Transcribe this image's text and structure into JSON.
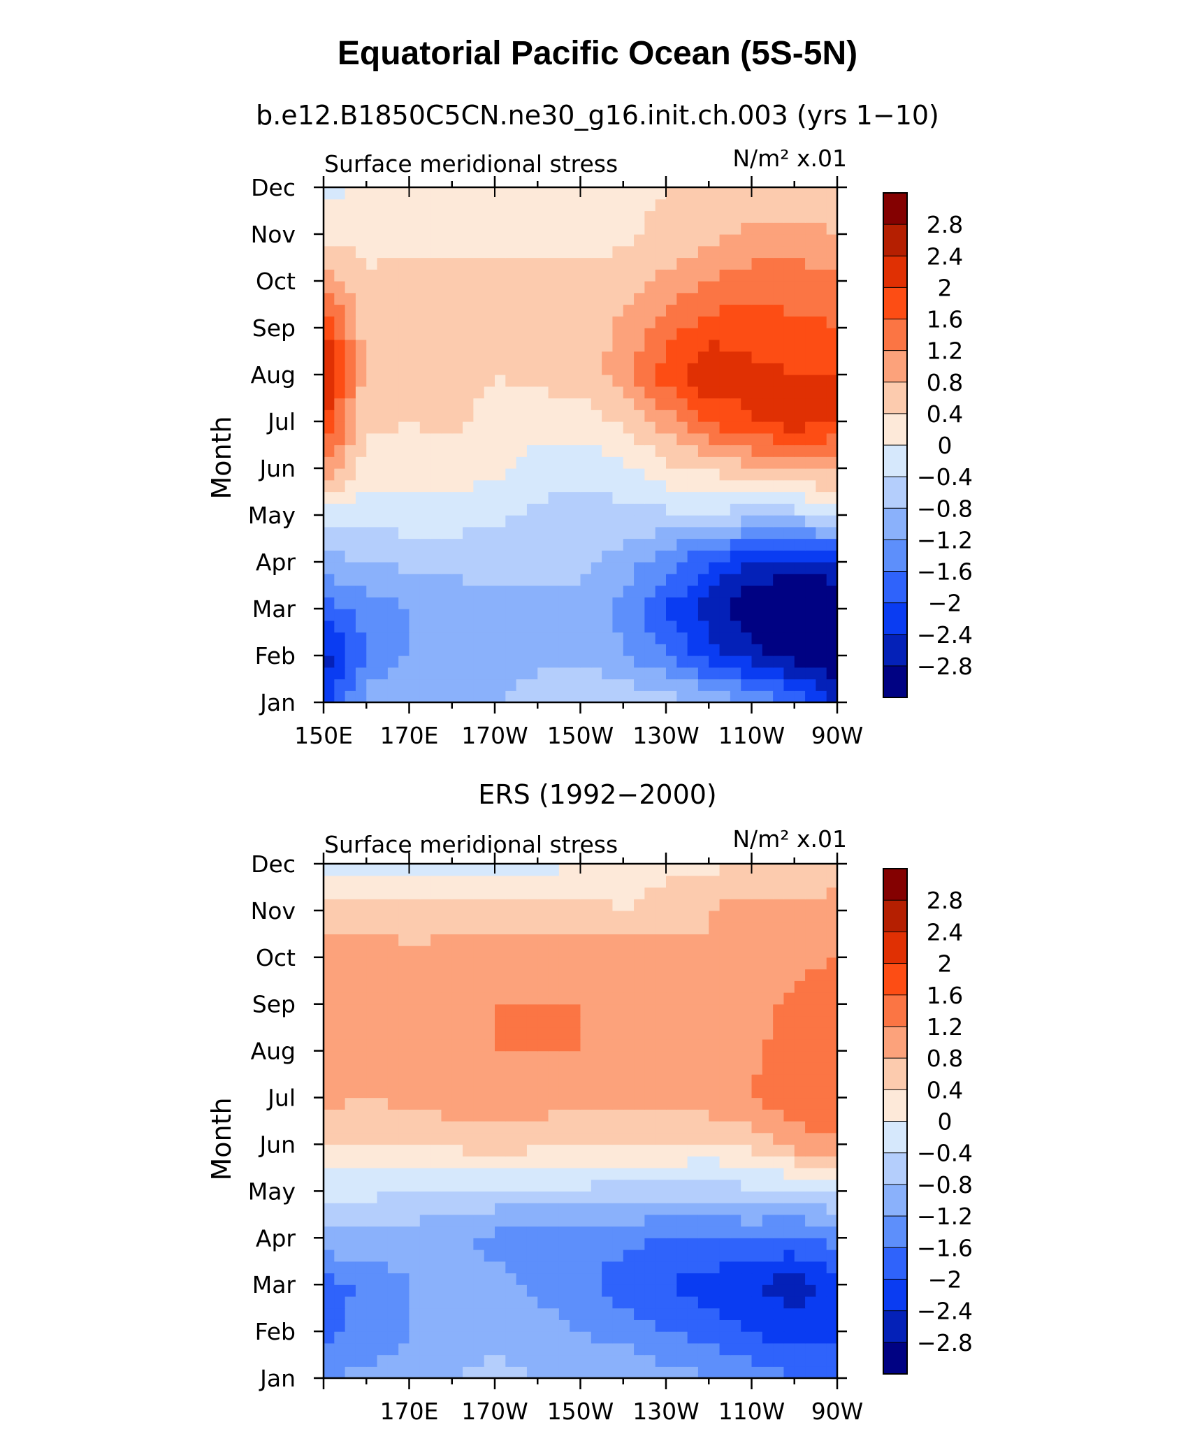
{
  "title": "Equatorial Pacific Ocean (5S-5N)",
  "colorbar_levels": [
    "2.8",
    "2.4",
    "2",
    "1.6",
    "1.2",
    "0.8",
    "0.4",
    "0",
    "−0.4",
    "−0.8",
    "−1.2",
    "−1.6",
    "−2",
    "−2.4",
    "−2.8"
  ],
  "colors": [
    "#840101",
    "#b51f01",
    "#e03003",
    "#fd4d14",
    "#fb7544",
    "#fca27b",
    "#fccbae",
    "#fde9d9",
    "#d6e8fc",
    "#b4cefc",
    "#8ab1fb",
    "#5d8ffb",
    "#2f63fb",
    "#0a3cf2",
    "#0421b8",
    "#000283"
  ],
  "chart_data": [
    {
      "type": "heatmap",
      "subtitle": "b.e12.B1850C5CN.ne30_g16.init.ch.003 (yrs 1−10)",
      "left_label": "Surface meridional stress",
      "units_label": "N/m² x.01",
      "ylabel": "Month",
      "months": [
        "Jan",
        "Feb",
        "Mar",
        "Apr",
        "May",
        "Jun",
        "Jul",
        "Aug",
        "Sep",
        "Oct",
        "Nov",
        "Dec"
      ],
      "xticks": [
        "150E",
        "170E",
        "170W",
        "150W",
        "130W",
        "110W",
        "90W"
      ],
      "x_longitudes": [
        150,
        160,
        170,
        180,
        190,
        200,
        210,
        220,
        230,
        240,
        250,
        260,
        270
      ],
      "values": [
        [
          -2.2,
          -1.0,
          -0.8,
          -0.8,
          -0.8,
          -0.6,
          -0.4,
          -0.4,
          -0.6,
          -0.8,
          -1.2,
          -1.6,
          -2.4
        ],
        [
          -2.6,
          -1.6,
          -1.2,
          -1.0,
          -1.0,
          -0.9,
          -0.9,
          -1.2,
          -1.6,
          -2.2,
          -2.6,
          -3.0,
          -3.2
        ],
        [
          -1.8,
          -1.4,
          -1.2,
          -1.0,
          -0.9,
          -0.9,
          -0.9,
          -1.3,
          -2.0,
          -2.6,
          -3.2,
          -3.4,
          -3.4
        ],
        [
          -1.0,
          -0.8,
          -0.7,
          -0.7,
          -0.7,
          -0.7,
          -0.7,
          -1.0,
          -1.4,
          -2.0,
          -2.4,
          -2.6,
          -2.4
        ],
        [
          -0.3,
          -0.2,
          -0.2,
          -0.2,
          -0.3,
          -0.5,
          -0.6,
          -0.5,
          -0.5,
          -0.5,
          -0.6,
          -0.6,
          -0.2
        ],
        [
          1.2,
          0.2,
          0.2,
          0.2,
          0.1,
          -0.2,
          -0.3,
          -0.1,
          0.3,
          0.5,
          0.7,
          0.8,
          0.9
        ],
        [
          2.0,
          0.5,
          0.4,
          0.5,
          0.2,
          0.2,
          0.2,
          0.5,
          1.0,
          1.6,
          2.0,
          2.2,
          2.0
        ],
        [
          2.6,
          0.6,
          0.6,
          0.6,
          0.4,
          0.5,
          0.6,
          1.0,
          1.8,
          2.4,
          2.1,
          2.0,
          2.0
        ],
        [
          2.0,
          0.6,
          0.6,
          0.6,
          0.6,
          0.5,
          0.5,
          0.9,
          1.4,
          1.8,
          1.8,
          1.7,
          1.6
        ],
        [
          1.0,
          0.5,
          0.5,
          0.5,
          0.5,
          0.5,
          0.5,
          0.6,
          0.9,
          1.2,
          1.4,
          1.4,
          1.4
        ],
        [
          0.3,
          0.2,
          0.3,
          0.3,
          0.3,
          0.3,
          0.3,
          0.3,
          0.5,
          0.7,
          0.9,
          0.9,
          0.8
        ],
        [
          -0.2,
          0.1,
          0.2,
          0.2,
          0.2,
          0.2,
          0.2,
          0.3,
          0.4,
          0.5,
          0.6,
          0.6,
          0.6
        ]
      ]
    },
    {
      "type": "heatmap",
      "subtitle": "ERS (1992−2000)",
      "left_label": "Surface meridional stress",
      "units_label": "N/m² x.01",
      "ylabel": "Month",
      "months": [
        "Jan",
        "Feb",
        "Mar",
        "Apr",
        "May",
        "Jun",
        "Jul",
        "Aug",
        "Sep",
        "Oct",
        "Nov",
        "Dec"
      ],
      "xticks": [
        "170E",
        "170W",
        "150W",
        "130W",
        "110W",
        "90W"
      ],
      "x_longitudes": [
        150,
        160,
        170,
        180,
        190,
        200,
        210,
        220,
        230,
        240,
        250,
        260,
        270
      ],
      "values": [
        [
          -1.2,
          -1.1,
          -1.0,
          -0.8,
          -0.7,
          -0.8,
          -0.8,
          -0.8,
          -1.0,
          -1.2,
          -1.4,
          -1.6,
          -1.6
        ],
        [
          -1.7,
          -1.5,
          -1.2,
          -1.0,
          -0.9,
          -1.0,
          -1.2,
          -1.4,
          -1.6,
          -1.8,
          -2.0,
          -2.2,
          -2.1
        ],
        [
          -1.8,
          -1.5,
          -1.2,
          -1.0,
          -1.1,
          -1.3,
          -1.5,
          -1.8,
          -2.0,
          -2.2,
          -2.4,
          -2.6,
          -2.3
        ],
        [
          -0.9,
          -0.9,
          -1.0,
          -1.1,
          -1.3,
          -1.4,
          -1.4,
          -1.5,
          -1.6,
          -1.6,
          -1.6,
          -1.7,
          -1.4
        ],
        [
          -0.3,
          -0.3,
          -0.4,
          -0.5,
          -0.5,
          -0.5,
          -0.5,
          -0.6,
          -0.6,
          -0.6,
          -0.5,
          -0.5,
          -0.4
        ],
        [
          0.4,
          0.5,
          0.5,
          0.5,
          0.6,
          0.5,
          0.5,
          0.4,
          0.4,
          0.3,
          0.5,
          1.0,
          1.0
        ],
        [
          0.9,
          0.8,
          0.9,
          1.0,
          1.0,
          1.0,
          0.9,
          1.0,
          1.0,
          1.1,
          1.2,
          1.5,
          1.6
        ],
        [
          1.1,
          0.9,
          0.9,
          1.1,
          1.2,
          1.2,
          1.2,
          1.1,
          1.1,
          1.0,
          1.1,
          1.4,
          1.6
        ],
        [
          1.2,
          1.1,
          0.9,
          1.1,
          1.2,
          1.2,
          1.2,
          1.2,
          1.0,
          0.8,
          1.0,
          1.3,
          1.5
        ],
        [
          1.0,
          1.0,
          0.9,
          1.0,
          1.1,
          1.2,
          1.1,
          1.1,
          1.0,
          0.8,
          0.9,
          1.1,
          1.2
        ],
        [
          0.5,
          0.6,
          0.6,
          0.5,
          0.5,
          0.5,
          0.5,
          0.4,
          0.6,
          0.8,
          1.0,
          1.0,
          1.0
        ],
        [
          -0.2,
          -0.2,
          -0.3,
          -0.2,
          -0.3,
          -0.2,
          0.1,
          0.2,
          0.3,
          0.3,
          0.4,
          0.4,
          0.5
        ]
      ]
    }
  ]
}
